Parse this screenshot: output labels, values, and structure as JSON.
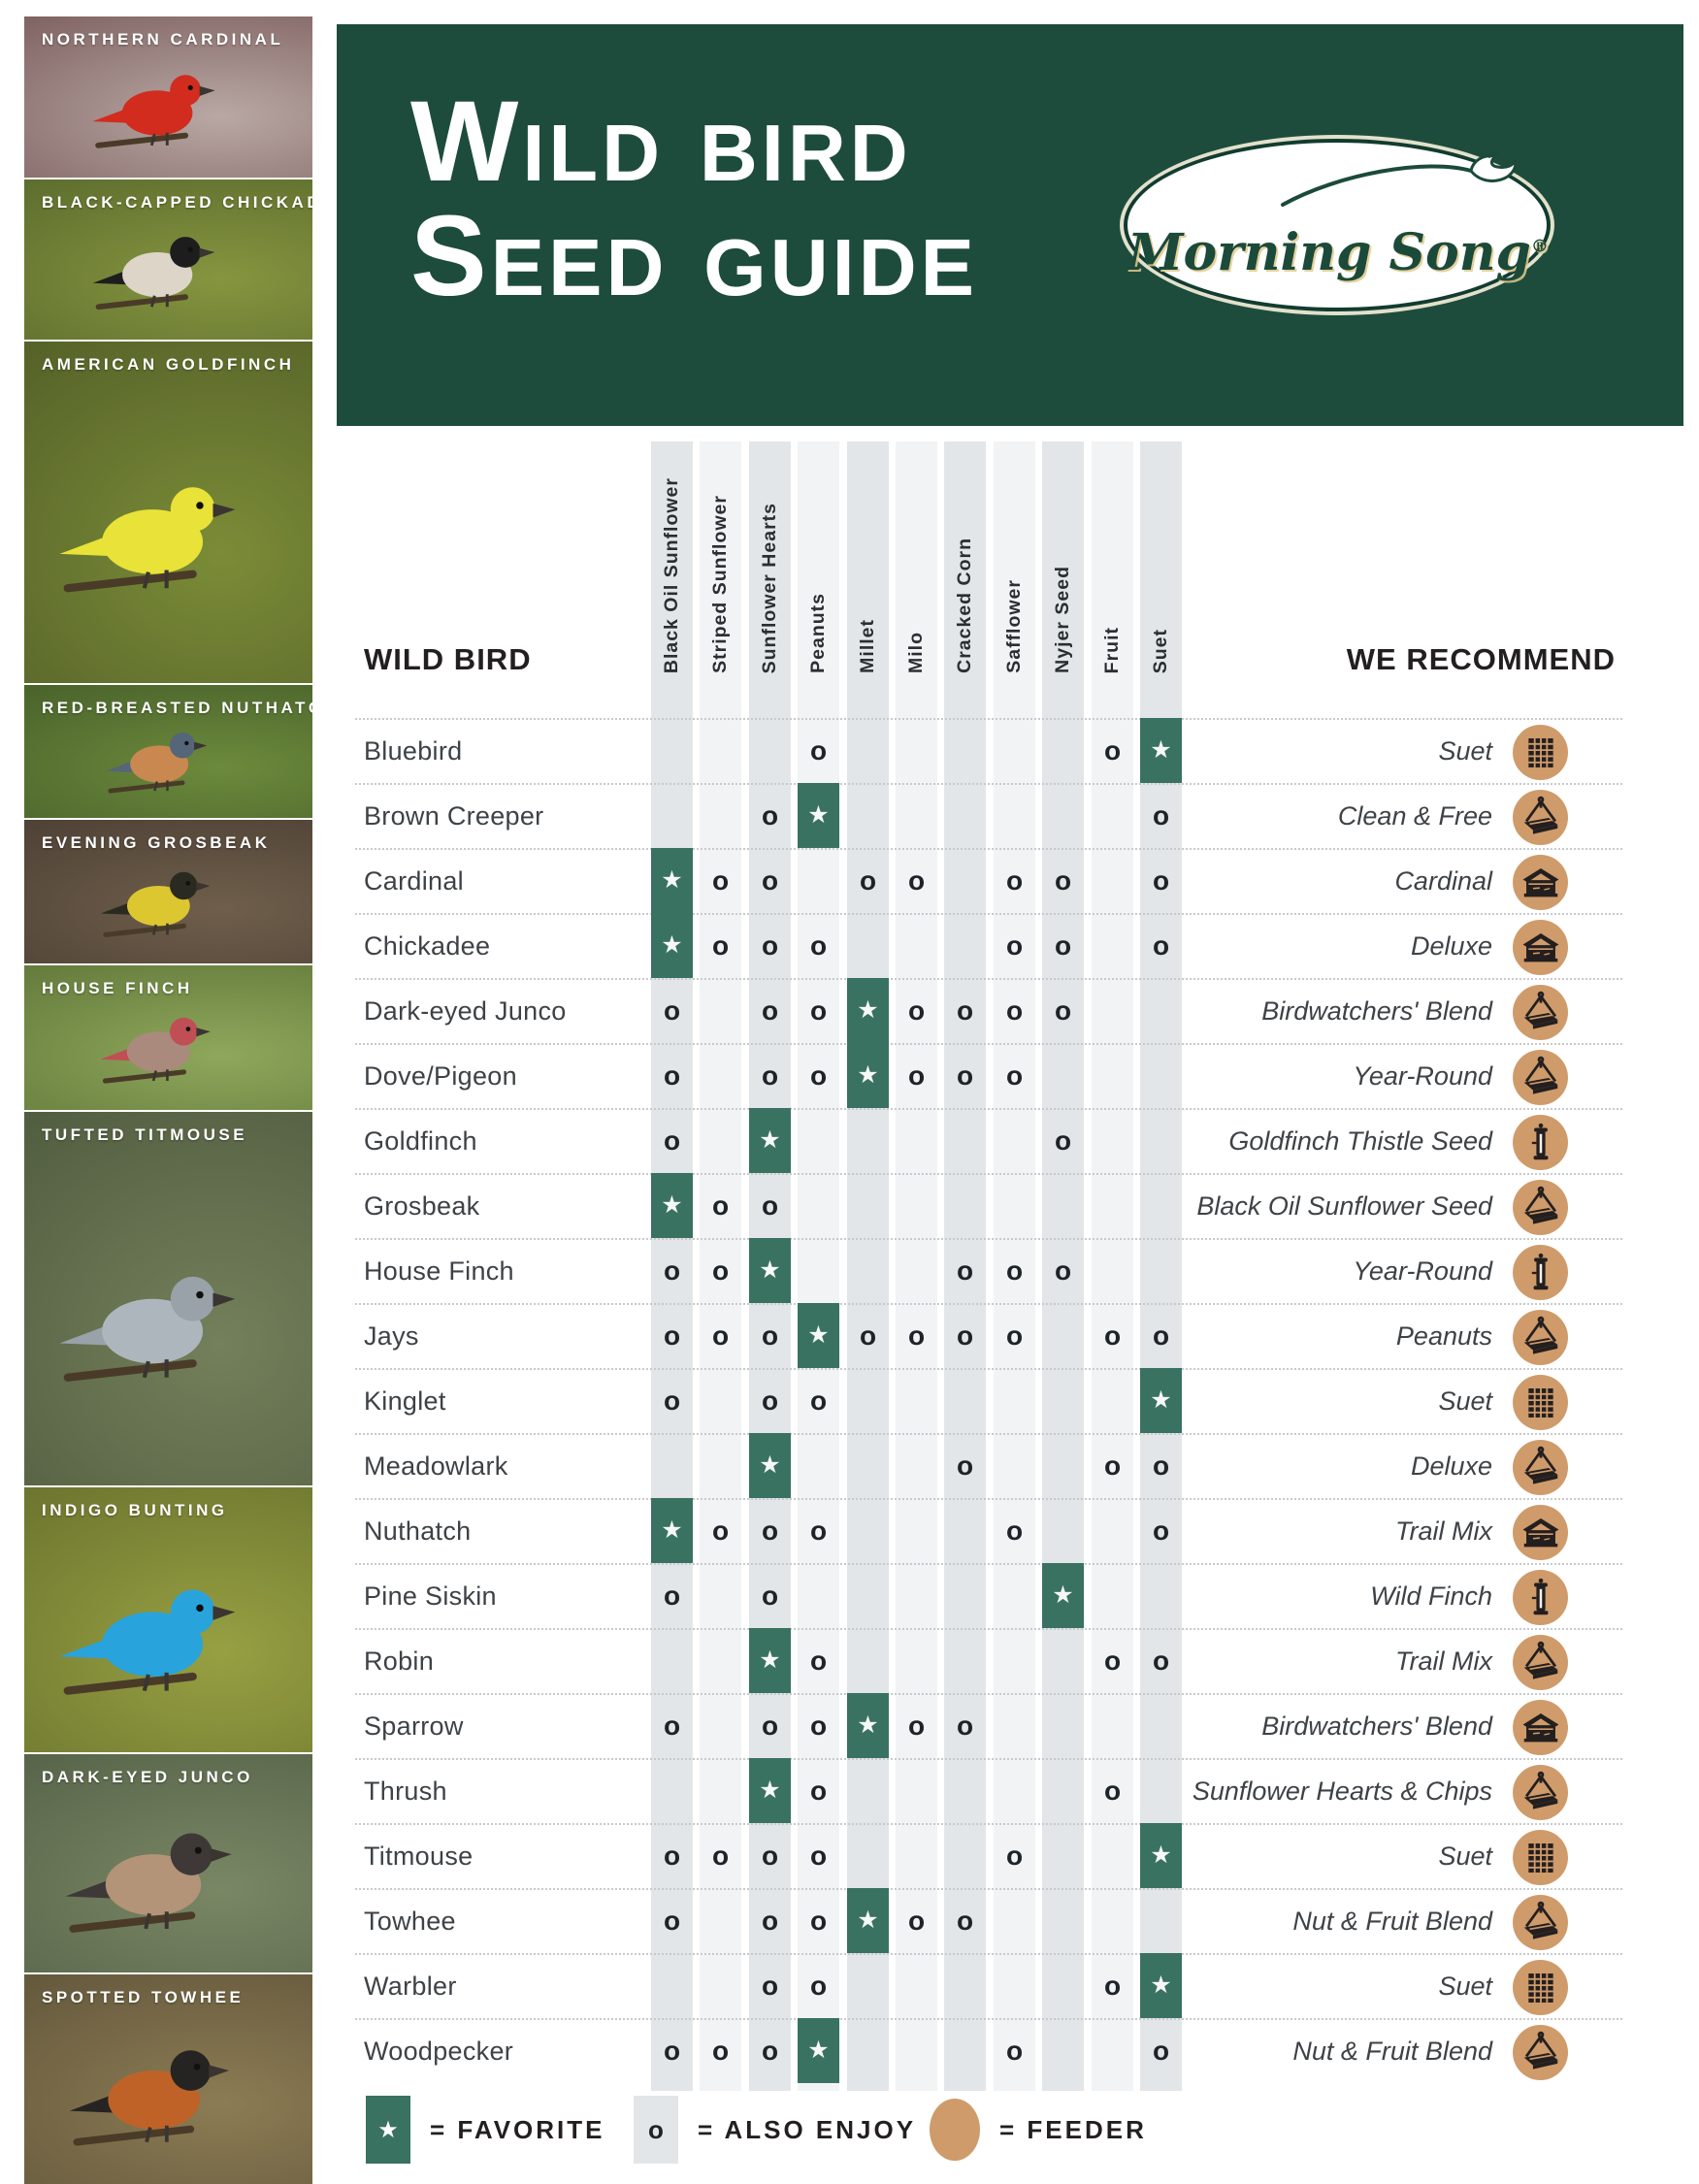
{
  "header": {
    "title_line1": "Wild Bird",
    "title_line2": "Seed Guide",
    "logo_text": "Morning Song",
    "logo_registered": "®",
    "banner_color": "#1d4c3c"
  },
  "sidebar": {
    "birds": [
      {
        "label": "NORTHERN CARDINAL",
        "bg1": "#b9a8a4",
        "bg2": "#7c5f5e",
        "body": "#d12c1e",
        "head": "#d12c1e"
      },
      {
        "label": "BLACK-CAPPED CHICKADEE",
        "bg1": "#86953f",
        "bg2": "#5a6b2d",
        "body": "#ddd5c8",
        "head": "#1d1d1d"
      },
      {
        "label": "AMERICAN GOLDFINCH",
        "bg1": "#7b8c37",
        "bg2": "#525f28",
        "body": "#e9e238",
        "head": "#e9e238"
      },
      {
        "label": "RED-BREASTED NUTHATCH",
        "bg1": "#6c8a3c",
        "bg2": "#47602a",
        "body": "#c9884f",
        "head": "#55657a"
      },
      {
        "label": "EVENING GROSBEAK",
        "bg1": "#6f5e4b",
        "bg2": "#4c4034",
        "body": "#dcc731",
        "head": "#2b2a20"
      },
      {
        "label": "HOUSE FINCH",
        "bg1": "#8fa75b",
        "bg2": "#61783a",
        "body": "#a98a7c",
        "head": "#c04e55"
      },
      {
        "label": "TUFTED TITMOUSE",
        "bg1": "#74805b",
        "bg2": "#4f5b3e",
        "body": "#aeb6bd",
        "head": "#99a1a9"
      },
      {
        "label": "INDIGO BUNTING",
        "bg1": "#97a042",
        "bg2": "#6a722e",
        "body": "#28a3dc",
        "head": "#28a3dc"
      },
      {
        "label": "DARK-EYED JUNCO",
        "bg1": "#7a8765",
        "bg2": "#556248",
        "body": "#b39478",
        "head": "#3e3936"
      },
      {
        "label": "SPOTTED TOWHEE",
        "bg1": "#8c7c54",
        "bg2": "#62563b",
        "body": "#bf6228",
        "head": "#262422"
      }
    ]
  },
  "table": {
    "left_header": "WILD BIRD",
    "right_header": "WE RECOMMEND",
    "seed_columns": [
      "Black Oil Sunflower",
      "Striped Sunflower",
      "Sunflower Hearts",
      "Peanuts",
      "Millet",
      "Milo",
      "Cracked Corn",
      "Safflower",
      "Nyjer Seed",
      "Fruit",
      "Suet"
    ],
    "rows": [
      {
        "bird": "Bluebird",
        "cells": [
          "",
          "",
          "",
          "o",
          "",
          "",
          "",
          "",
          "",
          "o",
          "★"
        ],
        "recommend": "Suet",
        "feeder_icon": "suet-cage-icon"
      },
      {
        "bird": "Brown Creeper",
        "cells": [
          "",
          "",
          "o",
          "★",
          "",
          "",
          "",
          "",
          "",
          "",
          "o"
        ],
        "recommend": "Clean & Free",
        "feeder_icon": "hanging-platform-feeder-icon"
      },
      {
        "bird": "Cardinal",
        "cells": [
          "★",
          "o",
          "o",
          "",
          "o",
          "o",
          "",
          "o",
          "o",
          "",
          "o"
        ],
        "recommend": "Cardinal",
        "feeder_icon": "hopper-feeder-icon"
      },
      {
        "bird": "Chickadee",
        "cells": [
          "★",
          "o",
          "o",
          "o",
          "",
          "",
          "",
          "o",
          "o",
          "",
          "o"
        ],
        "recommend": "Deluxe",
        "feeder_icon": "hopper-feeder-icon"
      },
      {
        "bird": "Dark-eyed Junco",
        "cells": [
          "o",
          "",
          "o",
          "o",
          "★",
          "o",
          "o",
          "o",
          "o",
          "",
          ""
        ],
        "recommend": "Birdwatchers' Blend",
        "feeder_icon": "hanging-platform-feeder-icon"
      },
      {
        "bird": "Dove/Pigeon",
        "cells": [
          "o",
          "",
          "o",
          "o",
          "★",
          "o",
          "o",
          "o",
          "",
          "",
          ""
        ],
        "recommend": "Year-Round",
        "feeder_icon": "hanging-platform-feeder-icon"
      },
      {
        "bird": "Goldfinch",
        "cells": [
          "o",
          "",
          "★",
          "",
          "",
          "",
          "",
          "",
          "o",
          "",
          ""
        ],
        "recommend": "Goldfinch Thistle Seed",
        "feeder_icon": "tube-feeder-icon"
      },
      {
        "bird": "Grosbeak",
        "cells": [
          "★",
          "o",
          "o",
          "",
          "",
          "",
          "",
          "",
          "",
          "",
          ""
        ],
        "recommend": "Black Oil Sunflower Seed",
        "feeder_icon": "hanging-platform-feeder-icon"
      },
      {
        "bird": "House Finch",
        "cells": [
          "o",
          "o",
          "★",
          "",
          "",
          "",
          "o",
          "o",
          "o",
          "",
          ""
        ],
        "recommend": "Year-Round",
        "feeder_icon": "tube-feeder-icon"
      },
      {
        "bird": "Jays",
        "cells": [
          "o",
          "o",
          "o",
          "★",
          "o",
          "o",
          "o",
          "o",
          "",
          "o",
          "o"
        ],
        "recommend": "Peanuts",
        "feeder_icon": "hanging-platform-feeder-icon"
      },
      {
        "bird": "Kinglet",
        "cells": [
          "o",
          "",
          "o",
          "o",
          "",
          "",
          "",
          "",
          "",
          "",
          "★"
        ],
        "recommend": "Suet",
        "feeder_icon": "suet-cage-icon"
      },
      {
        "bird": "Meadowlark",
        "cells": [
          "",
          "",
          "★",
          "",
          "",
          "",
          "o",
          "",
          "",
          "o",
          "o"
        ],
        "recommend": "Deluxe",
        "feeder_icon": "hanging-platform-feeder-icon"
      },
      {
        "bird": "Nuthatch",
        "cells": [
          "★",
          "o",
          "o",
          "o",
          "",
          "",
          "",
          "o",
          "",
          "",
          "o"
        ],
        "recommend": "Trail Mix",
        "feeder_icon": "hopper-feeder-icon"
      },
      {
        "bird": "Pine Siskin",
        "cells": [
          "o",
          "",
          "o",
          "",
          "",
          "",
          "",
          "",
          "★",
          "",
          ""
        ],
        "recommend": "Wild Finch",
        "feeder_icon": "tube-feeder-icon"
      },
      {
        "bird": "Robin",
        "cells": [
          "",
          "",
          "★",
          "o",
          "",
          "",
          "",
          "",
          "",
          "o",
          "o"
        ],
        "recommend": "Trail Mix",
        "feeder_icon": "hanging-platform-feeder-icon"
      },
      {
        "bird": "Sparrow",
        "cells": [
          "o",
          "",
          "o",
          "o",
          "★",
          "o",
          "o",
          "",
          "",
          "",
          ""
        ],
        "recommend": "Birdwatchers' Blend",
        "feeder_icon": "hopper-feeder-icon"
      },
      {
        "bird": "Thrush",
        "cells": [
          "",
          "",
          "★",
          "o",
          "",
          "",
          "",
          "",
          "",
          "o",
          ""
        ],
        "recommend": "Sunflower Hearts & Chips",
        "feeder_icon": "hanging-platform-feeder-icon"
      },
      {
        "bird": "Titmouse",
        "cells": [
          "o",
          "o",
          "o",
          "o",
          "",
          "",
          "",
          "o",
          "",
          "",
          "★"
        ],
        "recommend": "Suet",
        "feeder_icon": "suet-cage-icon"
      },
      {
        "bird": "Towhee",
        "cells": [
          "o",
          "",
          "o",
          "o",
          "★",
          "o",
          "o",
          "",
          "",
          "",
          ""
        ],
        "recommend": "Nut & Fruit Blend",
        "feeder_icon": "hanging-platform-feeder-icon"
      },
      {
        "bird": "Warbler",
        "cells": [
          "",
          "",
          "o",
          "o",
          "",
          "",
          "",
          "",
          "",
          "o",
          "★"
        ],
        "recommend": "Suet",
        "feeder_icon": "suet-cage-icon"
      },
      {
        "bird": "Woodpecker",
        "cells": [
          "o",
          "o",
          "o",
          "★",
          "",
          "",
          "",
          "o",
          "",
          "",
          "o"
        ],
        "recommend": "Nut & Fruit Blend",
        "feeder_icon": "hanging-platform-feeder-icon"
      }
    ]
  },
  "legend": {
    "favorite_symbol": "★",
    "favorite_label": "= FAVORITE",
    "also_enjoy_symbol": "o",
    "also_enjoy_label": "= ALSO ENJOY",
    "feeder_label": "= FEEDER"
  },
  "colors": {
    "banner_green": "#1d4c3c",
    "favorite_green": "#3a7262",
    "feeder_tan": "#cf9b6a",
    "strip_dark": "#e3e6e8",
    "strip_light": "#f2f3f5",
    "text_dark": "#231f20",
    "row_text": "#3e4246"
  }
}
